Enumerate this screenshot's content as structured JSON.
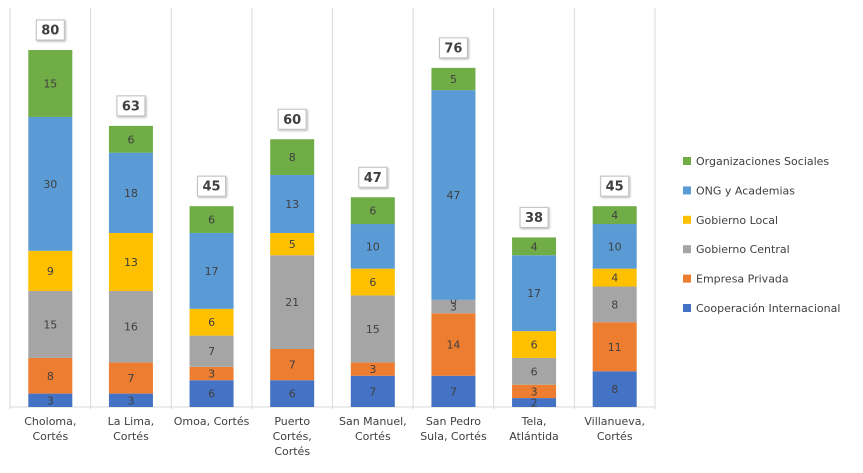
{
  "chart_data": {
    "type": "stacked_bar",
    "categories": [
      "Choloma, Cortés",
      "La Lima, Cortés",
      "Omoa, Cortés",
      "Puerto Cortés, Cortés",
      "San Manuel, Cortés",
      "San Pedro Sula, Cortés",
      "Tela, Atlántida",
      "Villanueva, Cortés"
    ],
    "series": [
      {
        "name": "Cooperación Internacional",
        "color": "#4472c4",
        "values": [
          3,
          3,
          6,
          6,
          7,
          7,
          2,
          8
        ]
      },
      {
        "name": "Empresa Privada",
        "color": "#ed7d31",
        "values": [
          8,
          7,
          3,
          7,
          3,
          14,
          3,
          11
        ]
      },
      {
        "name": "Gobierno Central",
        "color": "#a5a5a5",
        "values": [
          15,
          16,
          7,
          21,
          15,
          3,
          6,
          8
        ]
      },
      {
        "name": "Gobierno Local",
        "color": "#ffc000",
        "values": [
          9,
          13,
          6,
          5,
          6,
          0,
          6,
          4
        ]
      },
      {
        "name": "ONG y Academias",
        "color": "#5b9bd5",
        "values": [
          30,
          18,
          17,
          13,
          10,
          47,
          17,
          10
        ]
      },
      {
        "name": "Organizaciones Sociales",
        "color": "#70ad47",
        "values": [
          15,
          6,
          6,
          8,
          6,
          5,
          4,
          4
        ]
      }
    ],
    "totals": [
      80,
      63,
      45,
      60,
      47,
      76,
      38,
      45
    ],
    "legend": "right"
  }
}
